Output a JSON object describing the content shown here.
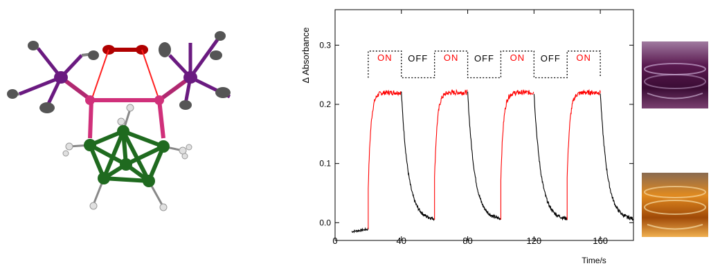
{
  "chart_data": {
    "type": "line",
    "title": "",
    "xlabel": "Time/s",
    "ylabel": "Δ Absorbance",
    "xlim": [
      0,
      180
    ],
    "ylim": [
      -0.03,
      0.36
    ],
    "xticks": [
      0,
      40,
      80,
      120,
      160
    ],
    "yticks": [
      0.0,
      0.1,
      0.2,
      0.3
    ],
    "xtick_labels": [
      "0",
      "40",
      "80",
      "120",
      "160"
    ],
    "ytick_labels": [
      "0.0",
      "0.1",
      "0.2",
      "0.3"
    ],
    "grid": false,
    "baseline": -0.015,
    "plateau": 0.22,
    "off_floor": 0.005,
    "cycles": [
      {
        "on_start": 20,
        "off_start": 40,
        "end": 60
      },
      {
        "on_start": 60,
        "off_start": 80,
        "end": 100
      },
      {
        "on_start": 100,
        "off_start": 120,
        "end": 140
      },
      {
        "on_start": 140,
        "off_start": 160,
        "end": 180
      }
    ],
    "series": [
      {
        "name": "ON",
        "color": "#ff0000"
      },
      {
        "name": "OFF",
        "color": "#000000"
      }
    ],
    "annotations": [
      {
        "text": "ON",
        "x": 30,
        "color": "#ff0000"
      },
      {
        "text": "OFF",
        "x": 50,
        "color": "#000000"
      },
      {
        "text": "ON",
        "x": 70,
        "color": "#ff0000"
      },
      {
        "text": "OFF",
        "x": 90,
        "color": "#000000"
      },
      {
        "text": "ON",
        "x": 110,
        "color": "#ff0000"
      },
      {
        "text": "OFF",
        "x": 130,
        "color": "#000000"
      },
      {
        "text": "ON",
        "x": 150,
        "color": "#ff0000"
      }
    ],
    "pulse_high": 0.29,
    "pulse_low": 0.245
  },
  "molecule": {
    "colors": {
      "oxygen": "#b00000",
      "metal": "#d0307a",
      "phosphorus": "#6a1a80",
      "boron": "#1f6a1f",
      "carbon": "#606060",
      "hydrogen": "#d8d8d8"
    }
  },
  "photos": [
    {
      "state": "ON",
      "liquid_color": "#4a1040"
    },
    {
      "state": "OFF",
      "liquid_color": "#c86a10"
    }
  ]
}
